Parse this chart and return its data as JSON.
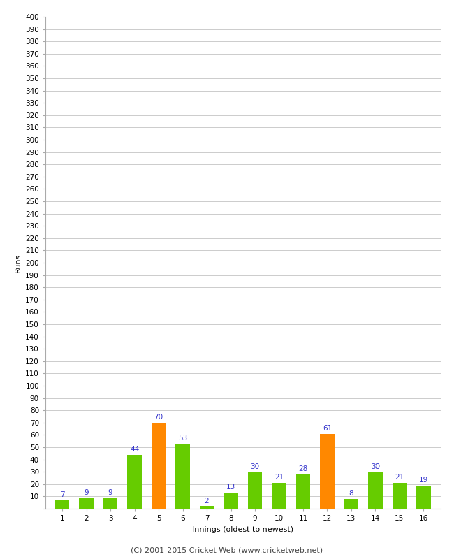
{
  "innings": [
    1,
    2,
    3,
    4,
    5,
    6,
    7,
    8,
    9,
    10,
    11,
    12,
    13,
    14,
    15,
    16
  ],
  "runs": [
    7,
    9,
    9,
    44,
    70,
    53,
    2,
    13,
    30,
    21,
    28,
    61,
    8,
    30,
    21,
    19
  ],
  "colors": [
    "#66cc00",
    "#66cc00",
    "#66cc00",
    "#66cc00",
    "#ff8800",
    "#66cc00",
    "#66cc00",
    "#66cc00",
    "#66cc00",
    "#66cc00",
    "#66cc00",
    "#ff8800",
    "#66cc00",
    "#66cc00",
    "#66cc00",
    "#66cc00"
  ],
  "xlabel": "Innings (oldest to newest)",
  "ylabel": "Runs",
  "footer": "(C) 2001-2015 Cricket Web (www.cricketweb.net)",
  "ylim": [
    0,
    400
  ],
  "ytick_step": 10,
  "bar_label_color": "#3333cc",
  "background_color": "#ffffff",
  "grid_color": "#cccccc",
  "bar_width": 0.6,
  "tick_fontsize": 7.5,
  "label_fontsize": 8,
  "footer_fontsize": 8
}
